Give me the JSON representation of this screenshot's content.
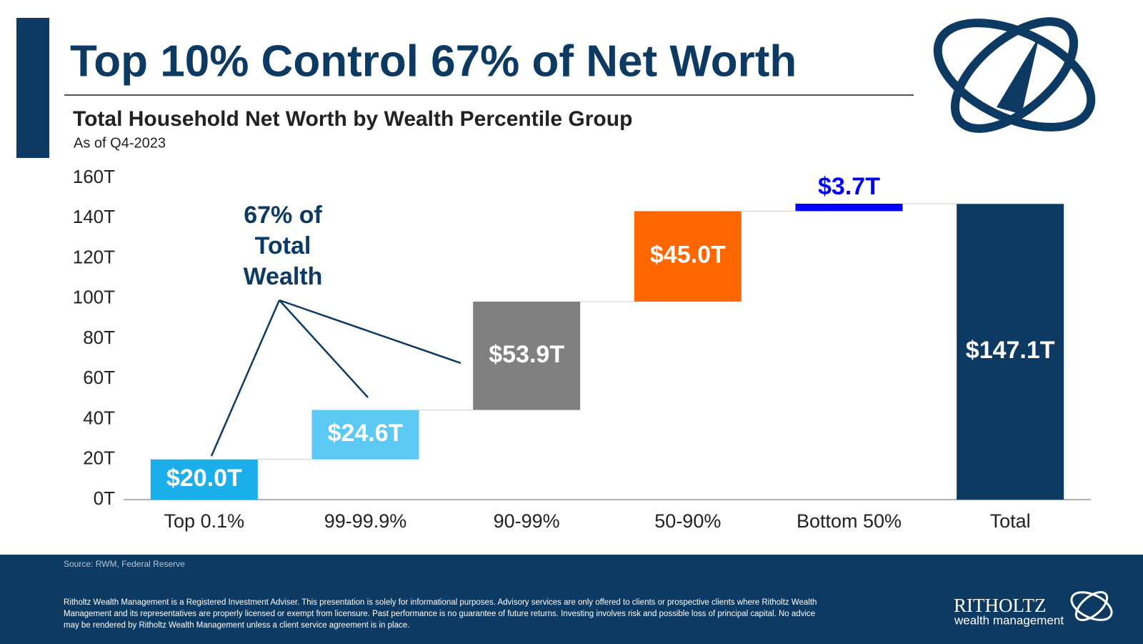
{
  "header": {
    "title": "Top 10% Control 67% of Net Worth",
    "subtitle": "Total Household Net Worth by Wealth Percentile Group",
    "note": "As of Q4-2023"
  },
  "chart_data": {
    "type": "waterfall",
    "categories": [
      "Top 0.1%",
      "99-99.9%",
      "90-99%",
      "50-90%",
      "Bottom 50%",
      "Total"
    ],
    "values": [
      20.0,
      24.6,
      53.9,
      45.0,
      3.7,
      147.1
    ],
    "value_labels": [
      "$20.0T",
      "$24.6T",
      "$53.9T",
      "$45.0T",
      "$3.7T",
      "$147.1T"
    ],
    "colors": [
      "#1aaeea",
      "#5cc8f4",
      "#808080",
      "#ff6600",
      "#0000ff",
      "#0d3a63"
    ],
    "ylim": [
      0,
      160
    ],
    "yticks": [
      {
        "value": 0,
        "label": "0T"
      },
      {
        "value": 20,
        "label": "20T"
      },
      {
        "value": 40,
        "label": "40T"
      },
      {
        "value": 60,
        "label": "60T"
      },
      {
        "value": 80,
        "label": "80T"
      },
      {
        "value": 100,
        "label": "100T"
      },
      {
        "value": 120,
        "label": "120T"
      },
      {
        "value": 140,
        "label": "140T"
      },
      {
        "value": 160,
        "label": "160T"
      }
    ],
    "annotation": [
      "67% of",
      "Total",
      "Wealth"
    ]
  },
  "footer": {
    "source": "Source: RWM, Federal Reserve",
    "disclaimer": [
      "Ritholtz Wealth Management is a Registered Investment Adviser. This presentation is solely for informational purposes. Advisory services are only offered to clients or prospective clients where Ritholtz Wealth",
      "Management and its representatives are properly licensed or exempt from licensure. Past performance is no guarantee of future returns. Investing involves risk and possible loss of principal capital. No advice",
      "may be rendered by Ritholtz Wealth Management unless a client service agreement is in place."
    ],
    "brand": "RITHOLTZ",
    "brand_sub": "wealth management"
  }
}
